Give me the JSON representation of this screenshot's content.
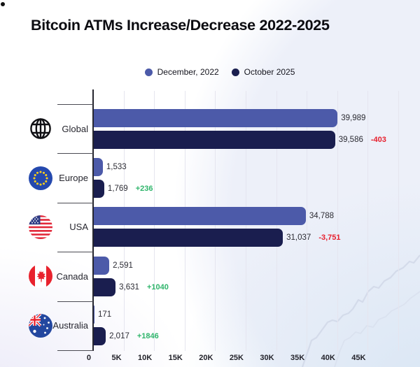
{
  "page": {
    "title": "Bitcoin ATMs Increase/Decrease 2022-2025"
  },
  "legend": [
    {
      "label": "December, 2022",
      "color_key": "bar_2022"
    },
    {
      "label": "October 2025",
      "color_key": "bar_2025"
    }
  ],
  "colors": {
    "bar_2022": "#4c5aa9",
    "bar_2025": "#1a1e4f",
    "positive": "#2fb56b",
    "negative": "#e71f2d"
  },
  "chart": {
    "axis": {
      "ticks": [
        {
          "label": "0",
          "value": 0
        },
        {
          "label": "5K",
          "value": 5000
        },
        {
          "label": "10K",
          "value": 10000
        },
        {
          "label": "15K",
          "value": 15000
        },
        {
          "label": "20K",
          "value": 20000
        },
        {
          "label": "25K",
          "value": 25000
        },
        {
          "label": "30K",
          "value": 30000
        },
        {
          "label": "35K",
          "value": 35000
        },
        {
          "label": "40K",
          "value": 40000
        },
        {
          "label": "45K",
          "value": 45000
        }
      ],
      "gridline_values": [
        5000,
        10000,
        15000,
        20000,
        25000,
        30000,
        35000,
        40000,
        45000,
        50000
      ]
    },
    "rows": [
      {
        "label": "Global",
        "icon": "globe-icon",
        "bar_2022": {
          "value": 39989,
          "text": "39,989"
        },
        "bar_2025": {
          "value": 39586,
          "text": "39,586"
        },
        "delta": {
          "text": "-403",
          "sign": "negative"
        }
      },
      {
        "label": "Europe",
        "icon": "eu-flag-icon",
        "bar_2022": {
          "value": 1533,
          "text": "1,533"
        },
        "bar_2025": {
          "value": 1769,
          "text": "1,769"
        },
        "delta": {
          "text": "+236",
          "sign": "positive"
        }
      },
      {
        "label": "USA",
        "icon": "usa-flag-icon",
        "bar_2022": {
          "value": 34788,
          "text": "34,788"
        },
        "bar_2025": {
          "value": 31037,
          "text": "31,037"
        },
        "delta": {
          "text": "-3,751",
          "sign": "negative"
        }
      },
      {
        "label": "Canada",
        "icon": "canada-flag-icon",
        "bar_2022": {
          "value": 2591,
          "text": "2,591"
        },
        "bar_2025": {
          "value": 3631,
          "text": "3,631"
        },
        "delta": {
          "text": "+1040",
          "sign": "positive"
        }
      },
      {
        "label": "Australia",
        "icon": "australia-flag-icon",
        "bar_2022": {
          "value": 171,
          "text": "171"
        },
        "bar_2025": {
          "value": 2017,
          "text": "2,017"
        },
        "delta": {
          "text": "+1846",
          "sign": "positive"
        }
      }
    ]
  },
  "chart_data": {
    "type": "bar",
    "orientation": "horizontal",
    "title": "Bitcoin ATMs Increase/Decrease 2022-2025",
    "categories": [
      "Global",
      "Europe",
      "USA",
      "Canada",
      "Australia"
    ],
    "series": [
      {
        "name": "December, 2022",
        "values": [
          39989,
          1533,
          34788,
          2591,
          171
        ]
      },
      {
        "name": "October 2025",
        "values": [
          39586,
          1769,
          31037,
          3631,
          2017
        ]
      }
    ],
    "annotations": {
      "deltas": [
        "-403",
        "+236",
        "-3,751",
        "+1040",
        "+1846"
      ]
    },
    "xlabel": "",
    "ylabel": "",
    "xlim": [
      0,
      50000
    ],
    "x_ticks": [
      "0",
      "5K",
      "10K",
      "15K",
      "20K",
      "25K",
      "30K",
      "35K",
      "40K",
      "45K"
    ],
    "grid": true,
    "legend_position": "top"
  }
}
